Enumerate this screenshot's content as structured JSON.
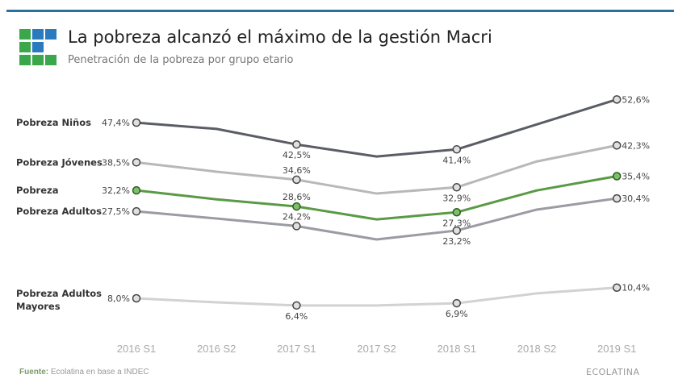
{
  "header": {
    "title": "La pobreza alcanzó el máximo de la gestión Macri",
    "subtitle": "Penetración de la pobreza por grupo etario"
  },
  "footer": {
    "source_label": "Fuente:",
    "source_text": "Ecolatina en base a INDEC",
    "brand": "ECOLATINA"
  },
  "colors": {
    "topbar": "#2a6f9e",
    "logo_green": "#3aa84a",
    "logo_blue": "#2a7ac0"
  },
  "chart_data": {
    "type": "line",
    "title": "La pobreza alcanzó el máximo de la gestión Macri",
    "subtitle": "Penetración de la pobreza por grupo etario",
    "categories": [
      "2016 S1",
      "2016 S2",
      "2017 S1",
      "2017 S2",
      "2018 S1",
      "2018 S2",
      "2019 S1"
    ],
    "ylim": [
      0,
      55
    ],
    "grid": false,
    "legend": "left labels",
    "series": [
      {
        "name": "Pobreza Niños",
        "color": "#5a5d66",
        "values": [
          47.4,
          46.0,
          42.5,
          39.8,
          41.4,
          47.0,
          52.6
        ],
        "labels": [
          "47,4%",
          "",
          "42,5%",
          "",
          "41,4%",
          "",
          "52,6%"
        ]
      },
      {
        "name": "Pobreza Jóvenes",
        "color": "#b8b8b8",
        "values": [
          38.5,
          36.4,
          34.6,
          31.5,
          32.9,
          38.7,
          42.3
        ],
        "labels": [
          "38,5%",
          "",
          "34,6%",
          "",
          "32,9%",
          "",
          "42,3%"
        ]
      },
      {
        "name": "Pobreza",
        "color": "#5a9a47",
        "values": [
          32.2,
          30.2,
          28.6,
          25.7,
          27.3,
          32.2,
          35.4
        ],
        "labels": [
          "32,2%",
          "",
          "28,6%",
          "",
          "27,3%",
          "",
          "35,4%"
        ]
      },
      {
        "name": "Pobreza Adultos",
        "color": "#9a9ca3",
        "values": [
          27.5,
          25.9,
          24.2,
          21.2,
          23.2,
          27.9,
          30.4
        ],
        "labels": [
          "27,5%",
          "",
          "24,2%",
          "",
          "23,2%",
          "",
          "30,4%"
        ]
      },
      {
        "name": "Pobreza Adultos Mayores",
        "name_lines": [
          "Pobreza Adultos",
          "Mayores"
        ],
        "color": "#d2d2d2",
        "values": [
          8.0,
          7.1,
          6.4,
          6.4,
          6.9,
          9.1,
          10.4
        ],
        "labels": [
          "8,0%",
          "",
          "6,4%",
          "",
          "6,9%",
          "",
          "10,4%"
        ]
      }
    ]
  }
}
